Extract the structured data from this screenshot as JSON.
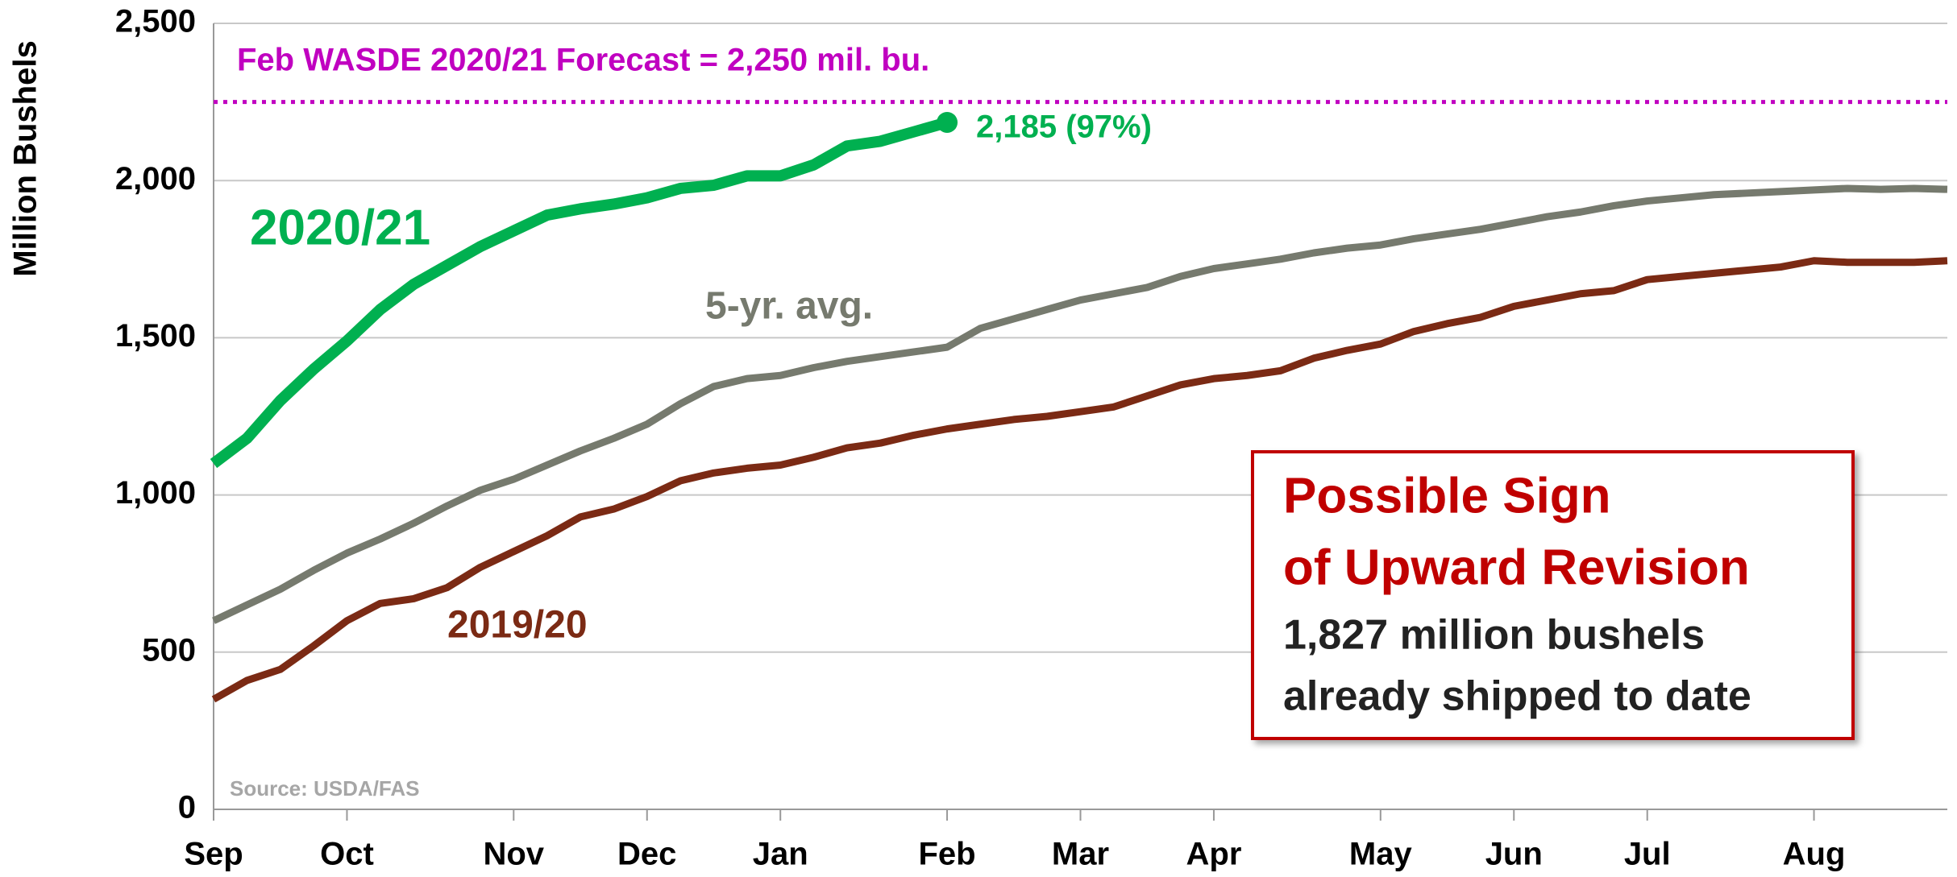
{
  "chart_data": {
    "type": "line",
    "y_label": "Million Bushels",
    "categories": [
      "Sep",
      null,
      null,
      null,
      "Oct",
      null,
      null,
      null,
      null,
      "Nov",
      null,
      null,
      null,
      "Dec",
      null,
      null,
      null,
      "Jan",
      null,
      null,
      null,
      null,
      "Feb",
      null,
      null,
      null,
      "Mar",
      null,
      null,
      null,
      "Apr",
      null,
      null,
      null,
      null,
      "May",
      null,
      null,
      null,
      "Jun",
      null,
      null,
      null,
      "Jul",
      null,
      null,
      null,
      null,
      "Aug",
      null,
      null,
      null,
      null
    ],
    "series": [
      {
        "name": "2020/21",
        "color": "#00b050",
        "values": [
          1100,
          1180,
          1300,
          1400,
          1490,
          1590,
          1670,
          1730,
          1790,
          1840,
          1890,
          1910,
          1925,
          1945,
          1975,
          1985,
          2015,
          2015,
          2050,
          2110,
          2125,
          2155,
          2185,
          null,
          null,
          null,
          null,
          null,
          null,
          null,
          null,
          null,
          null,
          null,
          null,
          null,
          null,
          null,
          null,
          null,
          null,
          null,
          null,
          null,
          null,
          null,
          null,
          null,
          null,
          null,
          null,
          null,
          null
        ]
      },
      {
        "name": "5-yr. avg.",
        "color": "#767a6e",
        "values": [
          600,
          650,
          700,
          760,
          815,
          860,
          910,
          965,
          1015,
          1050,
          1095,
          1140,
          1180,
          1225,
          1290,
          1345,
          1370,
          1380,
          1405,
          1425,
          1440,
          1455,
          1470,
          1530,
          1560,
          1590,
          1620,
          1640,
          1660,
          1695,
          1720,
          1735,
          1750,
          1770,
          1785,
          1795,
          1815,
          1830,
          1845,
          1865,
          1885,
          1900,
          1920,
          1935,
          1945,
          1955,
          1960,
          1965,
          1970,
          1975,
          1972,
          1975,
          1972
        ]
      },
      {
        "name": "2019/20",
        "color": "#7b2a14",
        "values": [
          350,
          410,
          445,
          520,
          600,
          655,
          670,
          705,
          770,
          820,
          870,
          930,
          955,
          995,
          1045,
          1070,
          1085,
          1095,
          1120,
          1150,
          1165,
          1190,
          1210,
          1225,
          1240,
          1250,
          1265,
          1280,
          1315,
          1350,
          1370,
          1380,
          1395,
          1435,
          1460,
          1480,
          1520,
          1545,
          1565,
          1600,
          1620,
          1640,
          1650,
          1685,
          1695,
          1705,
          1715,
          1725,
          1745,
          1740,
          1740,
          1740,
          1745
        ]
      }
    ],
    "end_label": "2,185 (97%)",
    "forecast": {
      "label": "Feb WASDE 2020/21 Forecast = 2,250 mil. bu.",
      "value": 2250,
      "color": "#c000c0"
    },
    "annotation_box": {
      "title": [
        "Possible Sign",
        "of Upward Revision"
      ],
      "text": [
        "1,827 million bushels",
        "already shipped to date"
      ]
    },
    "source": "Source: USDA/FAS",
    "ylim": [
      0,
      2500
    ],
    "yticks": [
      0,
      500,
      {
        "value": 1000,
        "label": "1,000"
      },
      {
        "value": 1500,
        "label": "1,500"
      },
      {
        "value": 2000,
        "label": "2,000"
      },
      {
        "value": 2500,
        "label": "2,500"
      }
    ],
    "grid": true
  }
}
